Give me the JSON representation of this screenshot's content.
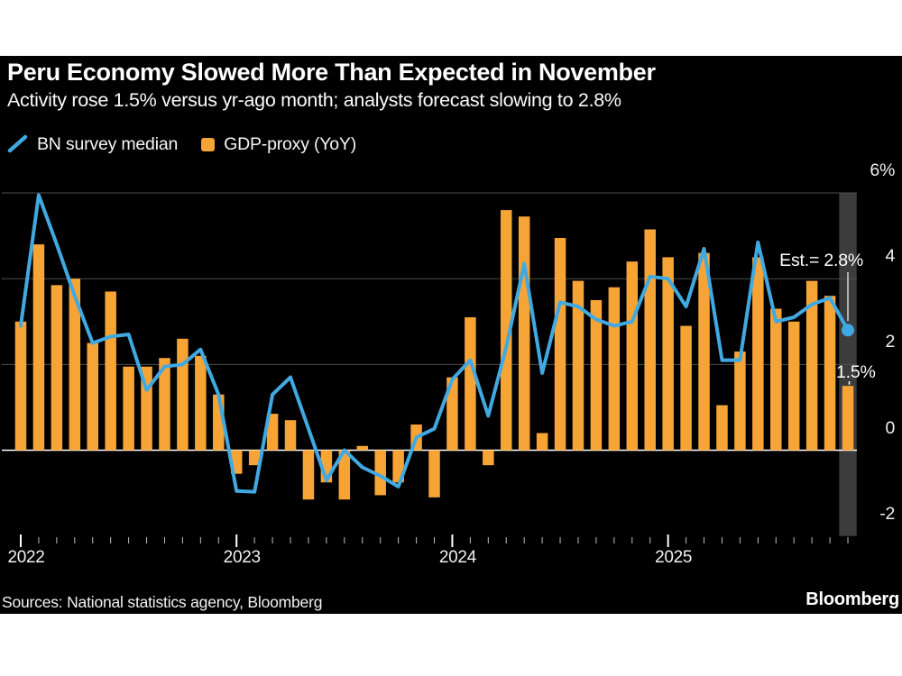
{
  "footer": {
    "sources": "Sources: National statistics agency, Bloomberg",
    "brand": "Bloomberg"
  },
  "colors": {
    "background": "#000000",
    "page": "#ffffff",
    "line_series": "#41A9E1",
    "bar_series": "#F7A437",
    "gridline": "#4E4E4E",
    "zero_line": "#FFFFFF",
    "highlight_band": "#3C3C3C",
    "minor_tick": "#BFBFBF",
    "major_tick": "#FFFFFF",
    "annotation": "#FFFFFF"
  },
  "chart_data": {
    "type": "bar+line",
    "title": "Peru Economy Slowed More Than Expected in November",
    "subtitle": "Activity rose 1.5% versus yr-ago month; analysts forecast slowing to 2.8%",
    "legend_position": "top-left",
    "grid": true,
    "ylim": [
      -2,
      6
    ],
    "yticks": [
      {
        "v": 6,
        "label": "6%"
      },
      {
        "v": 4,
        "label": "4"
      },
      {
        "v": 2,
        "label": "2"
      },
      {
        "v": 0,
        "label": "0"
      },
      {
        "v": -2,
        "label": "-2"
      }
    ],
    "year_ticks": [
      {
        "index": 0,
        "label": "2022"
      },
      {
        "index": 12,
        "label": "2023"
      },
      {
        "index": 24,
        "label": "2024"
      },
      {
        "index": 36,
        "label": "2025"
      }
    ],
    "categories": [
      "2022-01",
      "2022-02",
      "2022-03",
      "2022-04",
      "2022-05",
      "2022-06",
      "2022-07",
      "2022-08",
      "2022-09",
      "2022-10",
      "2022-11",
      "2022-12",
      "2023-01",
      "2023-02",
      "2023-03",
      "2023-04",
      "2023-05",
      "2023-06",
      "2023-07",
      "2023-08",
      "2023-09",
      "2023-10",
      "2023-11",
      "2023-12",
      "2024-01",
      "2024-02",
      "2024-03",
      "2024-04",
      "2024-05",
      "2024-06",
      "2024-07",
      "2024-08",
      "2024-09",
      "2024-10",
      "2024-11",
      "2024-12",
      "2025-01",
      "2025-02",
      "2025-03",
      "2025-04",
      "2025-05",
      "2025-06",
      "2025-07",
      "2025-08",
      "2025-09",
      "2025-10",
      "2025-11"
    ],
    "series": [
      {
        "name": "BN survey median",
        "type": "line",
        "color": "#41A9E1",
        "end_dot": true,
        "values": [
          2.9,
          5.95,
          4.8,
          3.6,
          2.5,
          2.65,
          2.7,
          1.4,
          1.95,
          2.0,
          2.35,
          1.3,
          -0.95,
          -0.97,
          1.3,
          1.7,
          0.5,
          -0.7,
          0.0,
          -0.4,
          -0.6,
          -0.85,
          0.3,
          0.5,
          1.65,
          2.1,
          0.8,
          2.4,
          4.35,
          1.8,
          3.45,
          3.35,
          3.05,
          2.9,
          3.0,
          4.05,
          4.0,
          3.35,
          4.7,
          2.1,
          2.1,
          4.85,
          3.0,
          3.1,
          3.4,
          3.55,
          2.8
        ]
      },
      {
        "name": "GDP-proxy (YoY)",
        "type": "bar",
        "color": "#F7A437",
        "values": [
          3.0,
          4.8,
          3.85,
          4.0,
          2.5,
          3.7,
          1.95,
          1.95,
          2.15,
          2.6,
          2.2,
          1.3,
          -0.55,
          -0.35,
          0.85,
          0.7,
          -1.15,
          -0.75,
          -1.15,
          0.1,
          -1.05,
          -0.75,
          0.6,
          -1.1,
          1.7,
          3.1,
          -0.35,
          5.6,
          5.45,
          0.4,
          4.95,
          3.95,
          3.5,
          3.8,
          4.4,
          5.15,
          4.5,
          2.9,
          4.6,
          1.05,
          2.3,
          4.5,
          3.3,
          3.0,
          3.95,
          3.6,
          1.5
        ]
      }
    ],
    "highlight": {
      "category": "2025-11",
      "color": "#3C3C3C"
    },
    "annotations": [
      {
        "text": "Est.= 2.8%",
        "series": "BN survey median",
        "target_category": "2025-11",
        "target_value": 2.8
      },
      {
        "text": "1.5%",
        "series": "GDP-proxy (YoY)",
        "target_category": "2025-11",
        "target_value": 1.5
      }
    ]
  }
}
